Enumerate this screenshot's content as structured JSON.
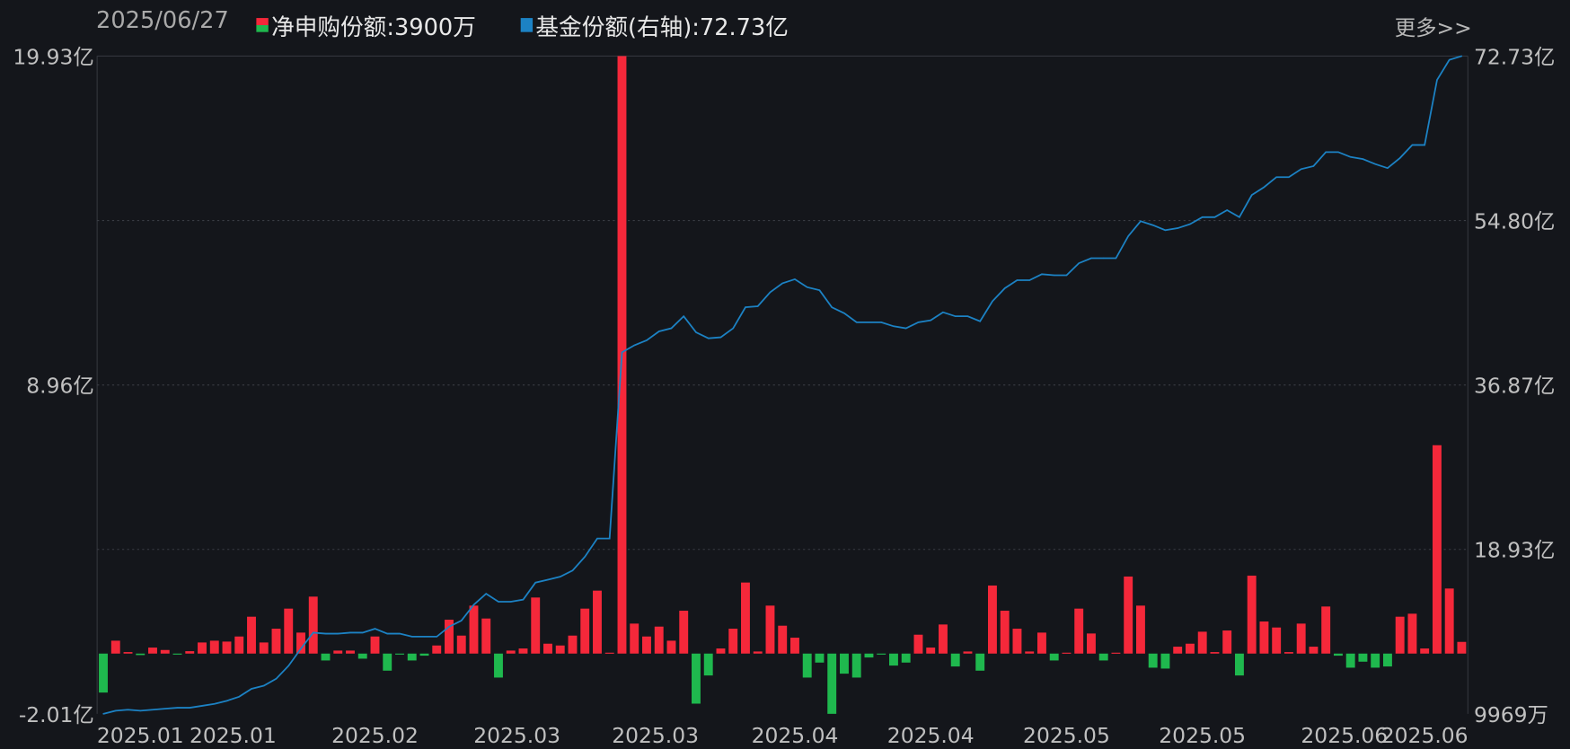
{
  "header": {
    "date": "2025/06/27",
    "series1_label": "净申购份额:3900万",
    "series2_label": "基金份额(右轴):72.73亿",
    "more_link": "更多>>"
  },
  "colors": {
    "positive": "#f5283a",
    "negative": "#1fb84e",
    "line": "#1c82c4",
    "background": "#14161b"
  },
  "chart_data": {
    "type": "bar+line",
    "left_axis": {
      "range": [
        -2.01,
        19.93
      ],
      "unit": "亿",
      "tick_labels": [
        "19.93亿",
        "8.96亿",
        "-2.01亿"
      ]
    },
    "right_axis": {
      "range": [
        0.9969,
        72.73
      ],
      "unit": "亿",
      "tick_labels": [
        "72.73亿",
        "54.80亿",
        "36.87亿",
        "18.93亿",
        "9969万"
      ]
    },
    "x_tick_labels": [
      {
        "label": "2025.01",
        "index": 3
      },
      {
        "label": "2025.01",
        "index": 10.5
      },
      {
        "label": "2025.02",
        "index": 22
      },
      {
        "label": "2025.03",
        "index": 33.5
      },
      {
        "label": "2025.03",
        "index": 44.7
      },
      {
        "label": "2025.04",
        "index": 56
      },
      {
        "label": "2025.04",
        "index": 67
      },
      {
        "label": "2025.05",
        "index": 78
      },
      {
        "label": "2025.05",
        "index": 89
      },
      {
        "label": "2025.06",
        "index": 100.5
      },
      {
        "label": "2025.06",
        "index": 107
      }
    ],
    "grid": "horizontal dotted",
    "series": [
      {
        "name": "净申购份额",
        "type": "bar",
        "axis": "left",
        "unit": "亿",
        "values": [
          -1.3,
          0.43,
          0.05,
          -0.05,
          0.2,
          0.12,
          -0.03,
          0.08,
          0.37,
          0.43,
          0.4,
          0.57,
          1.23,
          0.37,
          0.83,
          1.5,
          0.7,
          1.9,
          -0.23,
          0.1,
          0.1,
          -0.17,
          0.57,
          -0.57,
          -0.03,
          -0.23,
          -0.07,
          0.27,
          1.13,
          0.6,
          1.6,
          1.17,
          -0.8,
          0.1,
          0.17,
          1.87,
          0.33,
          0.27,
          0.6,
          1.5,
          2.1,
          0.03,
          19.93,
          1.0,
          0.57,
          0.9,
          0.43,
          1.43,
          -1.67,
          -0.73,
          0.17,
          0.83,
          2.37,
          0.07,
          1.6,
          0.93,
          0.53,
          -0.8,
          -0.3,
          -2.01,
          -0.67,
          -0.8,
          -0.13,
          -0.03,
          -0.4,
          -0.3,
          0.63,
          0.2,
          0.97,
          -0.43,
          0.07,
          -0.57,
          2.27,
          1.43,
          0.83,
          0.07,
          0.7,
          -0.23,
          0.03,
          1.5,
          0.67,
          -0.23,
          0.03,
          2.57,
          1.6,
          -0.47,
          -0.5,
          0.23,
          0.33,
          0.73,
          0.05,
          0.77,
          -0.73,
          2.6,
          1.07,
          0.87,
          0.05,
          1.0,
          0.23,
          1.57,
          -0.07,
          -0.47,
          -0.27,
          -0.47,
          -0.43,
          1.23,
          1.33,
          0.17,
          6.95,
          2.17,
          0.39
        ]
      },
      {
        "name": "基金份额",
        "type": "line",
        "axis": "right",
        "unit": "亿",
        "values": [
          1.0,
          1.33,
          1.44,
          1.33,
          1.44,
          1.55,
          1.66,
          1.66,
          1.87,
          2.09,
          2.42,
          2.86,
          3.73,
          4.06,
          4.82,
          6.24,
          8.1,
          9.85,
          9.74,
          9.74,
          9.85,
          9.85,
          10.28,
          9.74,
          9.74,
          9.41,
          9.41,
          9.41,
          10.5,
          11.16,
          12.9,
          14.1,
          13.23,
          13.23,
          13.45,
          15.31,
          15.63,
          15.96,
          16.62,
          18.14,
          20.11,
          20.11,
          40.42,
          41.19,
          41.73,
          42.71,
          43.04,
          44.35,
          42.61,
          41.95,
          42.06,
          43.04,
          45.34,
          45.45,
          46.97,
          47.96,
          48.39,
          47.52,
          47.19,
          45.34,
          44.68,
          43.7,
          43.7,
          43.7,
          43.26,
          43.04,
          43.7,
          43.92,
          44.79,
          44.35,
          44.35,
          43.81,
          45.99,
          47.41,
          48.28,
          48.28,
          48.94,
          48.83,
          48.83,
          50.14,
          50.69,
          50.69,
          50.69,
          53.09,
          54.73,
          54.29,
          53.74,
          53.96,
          54.4,
          55.16,
          55.16,
          55.93,
          55.16,
          57.57,
          58.44,
          59.53,
          59.53,
          60.4,
          60.73,
          62.26,
          62.26,
          61.72,
          61.5,
          60.95,
          60.51,
          61.61,
          63.03,
          63.03,
          70.12,
          72.31,
          72.73
        ]
      }
    ]
  }
}
